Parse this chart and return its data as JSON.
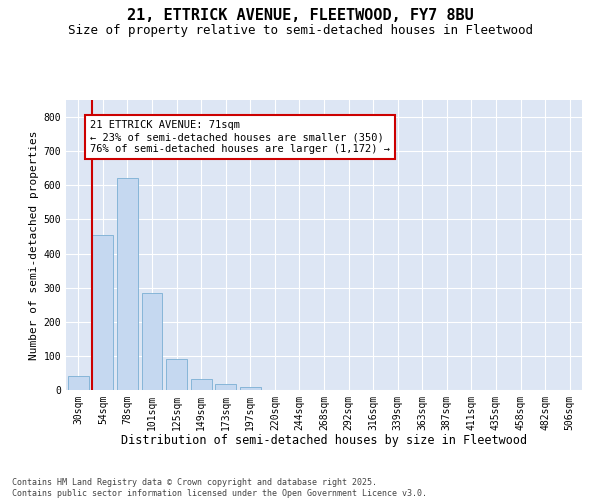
{
  "title1": "21, ETTRICK AVENUE, FLEETWOOD, FY7 8BU",
  "title2": "Size of property relative to semi-detached houses in Fleetwood",
  "xlabel": "Distribution of semi-detached houses by size in Fleetwood",
  "ylabel": "Number of semi-detached properties",
  "categories": [
    "30sqm",
    "54sqm",
    "78sqm",
    "101sqm",
    "125sqm",
    "149sqm",
    "173sqm",
    "197sqm",
    "220sqm",
    "244sqm",
    "268sqm",
    "292sqm",
    "316sqm",
    "339sqm",
    "363sqm",
    "387sqm",
    "411sqm",
    "435sqm",
    "458sqm",
    "482sqm",
    "506sqm"
  ],
  "values": [
    40,
    455,
    620,
    285,
    92,
    33,
    17,
    9,
    0,
    0,
    0,
    0,
    0,
    0,
    0,
    0,
    0,
    0,
    0,
    0,
    0
  ],
  "bar_color": "#c5d8f0",
  "bar_edge_color": "#7aafd4",
  "background_color": "#dde6f4",
  "grid_color": "#ffffff",
  "annotation_text": "21 ETTRICK AVENUE: 71sqm\n← 23% of semi-detached houses are smaller (350)\n76% of semi-detached houses are larger (1,172) →",
  "annotation_box_color": "#ffffff",
  "annotation_box_edge": "#cc0000",
  "vline_color": "#cc0000",
  "vline_x_index": 1,
  "ylim": [
    0,
    850
  ],
  "yticks": [
    0,
    100,
    200,
    300,
    400,
    500,
    600,
    700,
    800
  ],
  "footer_text": "Contains HM Land Registry data © Crown copyright and database right 2025.\nContains public sector information licensed under the Open Government Licence v3.0.",
  "title1_fontsize": 11,
  "title2_fontsize": 9,
  "xlabel_fontsize": 8.5,
  "ylabel_fontsize": 8,
  "tick_fontsize": 7,
  "annotation_fontsize": 7.5,
  "footer_fontsize": 6
}
